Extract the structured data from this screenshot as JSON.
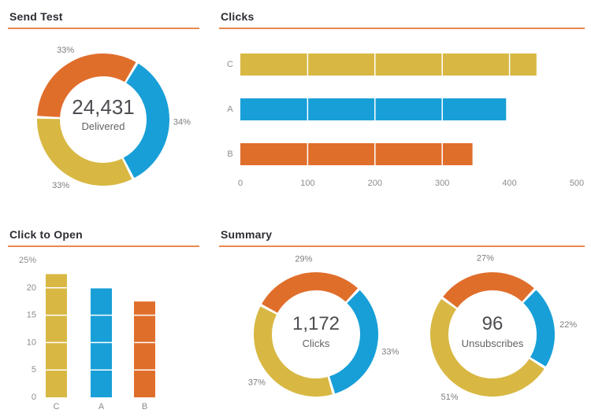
{
  "colors": {
    "orange": "#e06e2b",
    "blue": "#189fd8",
    "yellow": "#d8b843",
    "title_underline": "#e8884f",
    "title_text": "#2d2d34",
    "center_value_text": "#4d4d53",
    "percent_label_text": "#7d7d7d",
    "tick_text": "#8c8c8c"
  },
  "panels": {
    "send_test": {
      "title": "Send Test"
    },
    "clicks": {
      "title": "Clicks"
    },
    "click_to_open": {
      "title": "Click to Open"
    },
    "summary": {
      "title": "Summary"
    }
  },
  "chart_data": [
    {
      "id": "send-test-donut",
      "type": "donut",
      "title": "Send Test",
      "center_value": "24,431",
      "center_label": "Delivered",
      "start_angle": 272,
      "legend_position": "none",
      "slices": [
        {
          "name": "orange",
          "pct": 33,
          "label": "33%",
          "color": "#e06e2b"
        },
        {
          "name": "blue",
          "pct": 34,
          "label": "34%",
          "color": "#189fd8"
        },
        {
          "name": "yellow",
          "pct": 33,
          "label": "33%",
          "color": "#d8b843"
        }
      ]
    },
    {
      "id": "clicks-bar",
      "type": "bar",
      "orientation": "horizontal",
      "title": "Clicks",
      "categories": [
        "C",
        "A",
        "B"
      ],
      "values": [
        440,
        395,
        345
      ],
      "bar_colors": [
        "#d8b843",
        "#189fd8",
        "#e06e2b"
      ],
      "xlim": [
        0,
        500
      ],
      "ticks": [
        0,
        100,
        200,
        300,
        400,
        500
      ],
      "tick_labels": [
        "0",
        "100",
        "200",
        "300",
        "400",
        "500"
      ],
      "grid": "white-overlay"
    },
    {
      "id": "click-to-open-bar",
      "type": "bar",
      "orientation": "vertical",
      "title": "Click to Open",
      "categories": [
        "C",
        "A",
        "B"
      ],
      "values": [
        22.5,
        20,
        17.5
      ],
      "bar_colors": [
        "#d8b843",
        "#189fd8",
        "#e06e2b"
      ],
      "ylim": [
        0,
        25
      ],
      "ticks": [
        0,
        5,
        10,
        15,
        20,
        25
      ],
      "tick_labels": [
        "0",
        "5",
        "10",
        "15",
        "20",
        "25%"
      ],
      "grid": "white-overlay"
    },
    {
      "id": "summary-clicks-donut",
      "type": "donut",
      "title": "Summary - Clicks",
      "center_value": "1,172",
      "center_label": "Clicks",
      "start_angle": 298,
      "legend_position": "none",
      "slices": [
        {
          "name": "orange",
          "pct": 29,
          "label": "29%",
          "color": "#e06e2b"
        },
        {
          "name": "blue",
          "pct": 33,
          "label": "33%",
          "color": "#189fd8"
        },
        {
          "name": "yellow",
          "pct": 37,
          "label": "37%",
          "color": "#d8b843"
        }
      ]
    },
    {
      "id": "summary-unsubscribes-donut",
      "type": "donut",
      "title": "Summary - Unsubscribes",
      "center_value": "96",
      "center_label": "Unsubscribes",
      "start_angle": 306,
      "legend_position": "none",
      "slices": [
        {
          "name": "orange",
          "pct": 27,
          "label": "27%",
          "color": "#e06e2b"
        },
        {
          "name": "blue",
          "pct": 22,
          "label": "22%",
          "color": "#189fd8"
        },
        {
          "name": "yellow",
          "pct": 51,
          "label": "51%",
          "color": "#d8b843"
        }
      ]
    }
  ]
}
